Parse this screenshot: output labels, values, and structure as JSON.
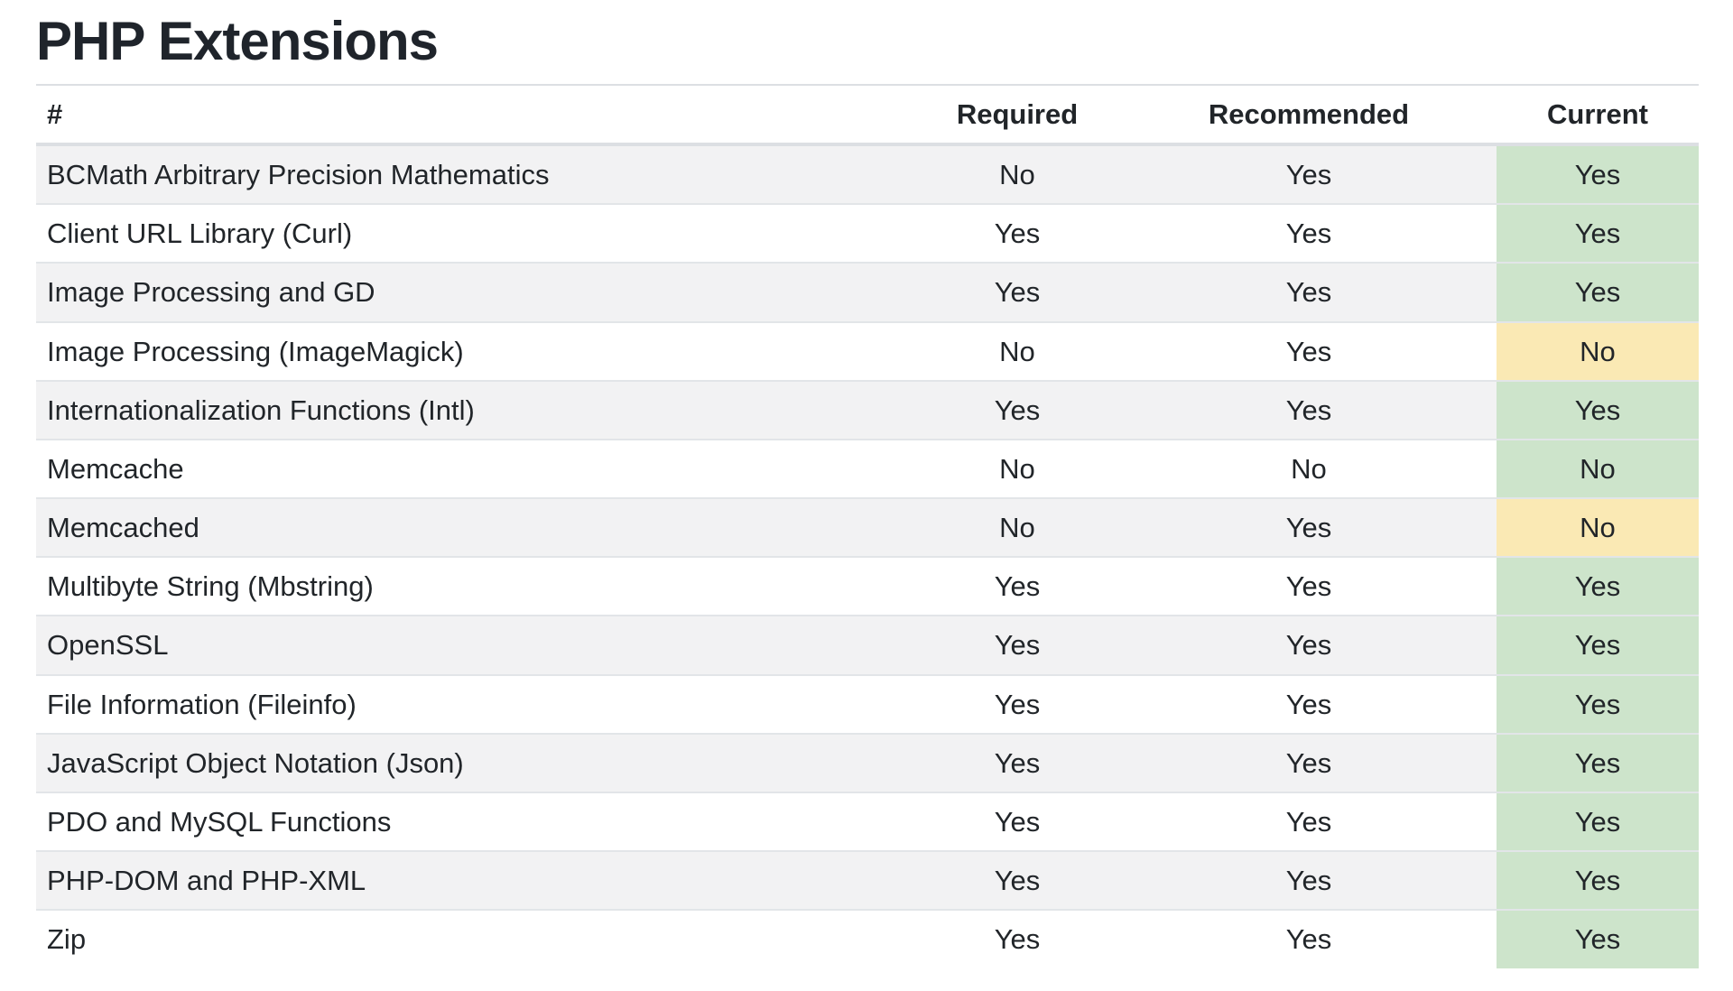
{
  "page_title": "PHP Extensions",
  "table": {
    "columns": [
      {
        "key": "name",
        "label": "#",
        "align": "left"
      },
      {
        "key": "required",
        "label": "Required",
        "align": "center"
      },
      {
        "key": "recommended",
        "label": "Recommended",
        "align": "center"
      },
      {
        "key": "current",
        "label": "Current",
        "align": "center"
      }
    ],
    "rows": [
      {
        "name": "BCMath Arbitrary Precision Mathematics",
        "required": "No",
        "recommended": "Yes",
        "current": "Yes",
        "current_status": "ok"
      },
      {
        "name": "Client URL Library (Curl)",
        "required": "Yes",
        "recommended": "Yes",
        "current": "Yes",
        "current_status": "ok"
      },
      {
        "name": "Image Processing and GD",
        "required": "Yes",
        "recommended": "Yes",
        "current": "Yes",
        "current_status": "ok"
      },
      {
        "name": "Image Processing (ImageMagick)",
        "required": "No",
        "recommended": "Yes",
        "current": "No",
        "current_status": "warn"
      },
      {
        "name": "Internationalization Functions (Intl)",
        "required": "Yes",
        "recommended": "Yes",
        "current": "Yes",
        "current_status": "ok"
      },
      {
        "name": "Memcache",
        "required": "No",
        "recommended": "No",
        "current": "No",
        "current_status": "ok"
      },
      {
        "name": "Memcached",
        "required": "No",
        "recommended": "Yes",
        "current": "No",
        "current_status": "warn"
      },
      {
        "name": "Multibyte String (Mbstring)",
        "required": "Yes",
        "recommended": "Yes",
        "current": "Yes",
        "current_status": "ok"
      },
      {
        "name": "OpenSSL",
        "required": "Yes",
        "recommended": "Yes",
        "current": "Yes",
        "current_status": "ok"
      },
      {
        "name": "File Information (Fileinfo)",
        "required": "Yes",
        "recommended": "Yes",
        "current": "Yes",
        "current_status": "ok"
      },
      {
        "name": "JavaScript Object Notation (Json)",
        "required": "Yes",
        "recommended": "Yes",
        "current": "Yes",
        "current_status": "ok"
      },
      {
        "name": "PDO and MySQL Functions",
        "required": "Yes",
        "recommended": "Yes",
        "current": "Yes",
        "current_status": "ok"
      },
      {
        "name": "PHP-DOM and PHP-XML",
        "required": "Yes",
        "recommended": "Yes",
        "current": "Yes",
        "current_status": "ok"
      },
      {
        "name": "Zip",
        "required": "Yes",
        "recommended": "Yes",
        "current": "Yes",
        "current_status": "ok"
      }
    ]
  },
  "colors": {
    "status_ok_bg": "#cde4cb",
    "status_warn_bg": "#fae9b4",
    "stripe_bg": "#f2f2f3",
    "row_border": "#e2e5e8",
    "header_border": "#dcdfe3",
    "text": "#212529"
  }
}
